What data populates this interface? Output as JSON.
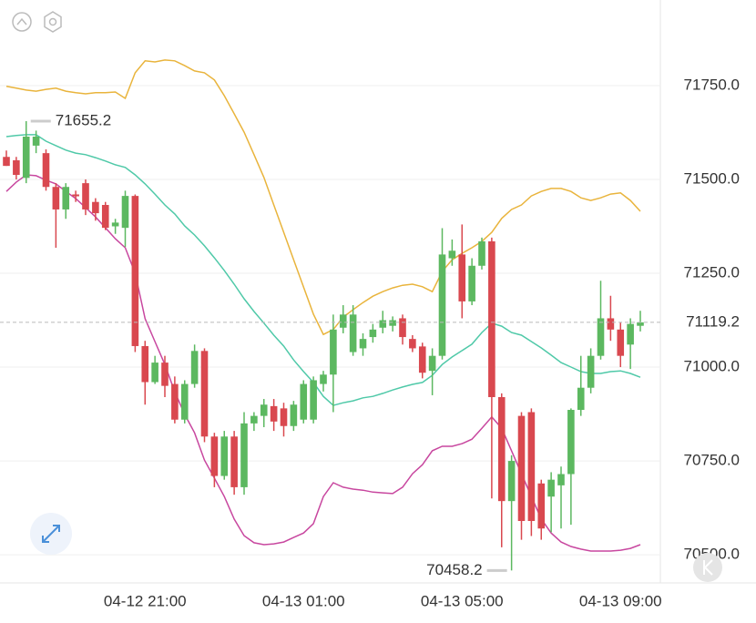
{
  "chart_data": {
    "type": "candlestick",
    "categories": [
      null,
      null,
      null,
      null,
      null,
      null,
      null,
      null,
      null,
      null,
      null,
      null,
      null,
      null,
      "04-12 21:00",
      null,
      null,
      null,
      null,
      null,
      null,
      null,
      null,
      null,
      null,
      null,
      null,
      null,
      null,
      null,
      "04-13 01:00",
      null,
      null,
      null,
      null,
      null,
      null,
      null,
      null,
      null,
      null,
      null,
      null,
      null,
      null,
      null,
      "04-13 05:00",
      null,
      null,
      null,
      null,
      null,
      null,
      null,
      null,
      null,
      null,
      null,
      null,
      null,
      null,
      null,
      "04-13 09:00",
      null,
      null
    ],
    "open": [
      71560,
      71551,
      71504,
      71590,
      71570,
      71480,
      71420,
      71460,
      71490,
      71440,
      71432,
      71375,
      71371,
      71456,
      71056,
      70960,
      71012,
      70955,
      70860,
      70955,
      71043,
      70815,
      70710,
      70815,
      70680,
      70850,
      70870,
      70896,
      70890,
      70843,
      70860,
      70860,
      70955,
      70980,
      71105,
      71040,
      71050,
      71080,
      71105,
      71110,
      71130,
      71075,
      71055,
      70990,
      71030,
      71290,
      71300,
      71175,
      71270,
      71335,
      70920,
      70643,
      70870,
      70880,
      70690,
      70655,
      70685,
      70715,
      70886,
      70945,
      71030,
      71130,
      71100,
      71060,
      71110
    ],
    "high": [
      71577,
      71560,
      71655.2,
      71630,
      71580,
      71490,
      71490,
      71470,
      71500,
      71450,
      71440,
      71395,
      71470,
      71460,
      71070,
      71030,
      71030,
      70975,
      70965,
      71060,
      71050,
      70825,
      70830,
      70830,
      70880,
      70880,
      70915,
      70915,
      70905,
      70910,
      70965,
      70975,
      70990,
      71140,
      71165,
      71165,
      71090,
      71115,
      71150,
      71135,
      71140,
      71085,
      71065,
      71050,
      71370,
      71340,
      71380,
      71290,
      71345,
      71345,
      70930,
      70765,
      70880,
      70890,
      70700,
      70720,
      70735,
      70890,
      71030,
      71050,
      71230,
      71190,
      71120,
      71130,
      71150
    ],
    "low": [
      71536,
      71500,
      71490,
      71570,
      71470,
      71318,
      71395,
      71440,
      71405,
      71390,
      71365,
      71355,
      71320,
      71040,
      70900,
      70955,
      70920,
      70850,
      70850,
      70945,
      70800,
      70680,
      70700,
      70660,
      70660,
      70830,
      70840,
      70830,
      70815,
      70830,
      70850,
      70850,
      70935,
      70880,
      71090,
      71030,
      71030,
      71065,
      71090,
      71095,
      71060,
      71040,
      70970,
      70925,
      71020,
      71270,
      71130,
      71165,
      71260,
      70650,
      70520,
      70458.2,
      70540,
      70550,
      70540,
      70560,
      70570,
      70580,
      70870,
      70930,
      71020,
      71070,
      71000,
      70995,
      71095
    ],
    "close": [
      71536,
      71512,
      71614,
      71614,
      71480,
      71420,
      71480,
      71455,
      71420,
      71410,
      71371,
      71385,
      71456,
      71056,
      70960,
      71012,
      70950,
      70860,
      70955,
      71043,
      70815,
      70710,
      70815,
      70680,
      70850,
      70870,
      70900,
      70855,
      70843,
      70900,
      70955,
      70965,
      70980,
      71100,
      71140,
      71140,
      71075,
      71100,
      71125,
      71125,
      71080,
      71050,
      70985,
      71030,
      71300,
      71310,
      71175,
      71270,
      71335,
      70920,
      70643,
      70750,
      70590,
      70590,
      70570,
      70700,
      70715,
      70886,
      70945,
      71030,
      71130,
      71100,
      71030,
      71115,
      71119.2
    ],
    "up_color": "#5cb860",
    "down_color": "#d9484f",
    "series": [
      {
        "color": "#e9b43c",
        "values": [
          71748,
          71743,
          71738,
          71735,
          71740,
          71743,
          71735,
          71731,
          71728,
          71731,
          71731,
          71733,
          71716,
          71784,
          71816,
          71813,
          71818,
          71816,
          71803,
          71789,
          71784,
          71765,
          71723,
          71675,
          71626,
          71566,
          71505,
          71432,
          71359,
          71286,
          71213,
          71141,
          71087,
          71100,
          71133,
          71153,
          71172,
          71189,
          71201,
          71211,
          71218,
          71221,
          71214,
          71201,
          71255,
          71286,
          71303,
          71318,
          71335,
          71359,
          71396,
          71420,
          71432,
          71456,
          71468,
          71476,
          71476,
          71468,
          71451,
          71444,
          71451,
          71461,
          71464,
          71444,
          71415
        ]
      },
      {
        "color": "#4fc9a8",
        "values": [
          71614,
          71617,
          71619,
          71619,
          71602,
          71590,
          71578,
          71570,
          71566,
          71558,
          71549,
          71539,
          71532,
          71512,
          71488,
          71461,
          71432,
          71408,
          71376,
          71352,
          71323,
          71291,
          71257,
          71221,
          71182,
          71148,
          71117,
          71085,
          71056,
          71019,
          70988,
          70959,
          70922,
          70898,
          70905,
          70910,
          70918,
          70922,
          70930,
          70939,
          70947,
          70954,
          70959,
          70978,
          71007,
          71027,
          71044,
          71061,
          71092,
          71117,
          71109,
          71092,
          71085,
          71068,
          71051,
          71032,
          71012,
          71000,
          70988,
          70983,
          70983,
          70988,
          70990,
          70983,
          70973
        ]
      },
      {
        "color": "#c8479f",
        "values": [
          71468,
          71493,
          71512,
          71510,
          71498,
          71488,
          71468,
          71449,
          71425,
          71400,
          71371,
          71342,
          71318,
          71250,
          71129,
          71068,
          71007,
          70934,
          70874,
          70825,
          70752,
          70704,
          70655,
          70595,
          70551,
          70532,
          70527,
          70529,
          70534,
          70546,
          70558,
          70583,
          70655,
          70692,
          70680,
          70675,
          70672,
          70667,
          70665,
          70663,
          70680,
          70716,
          70740,
          70777,
          70789,
          70789,
          70796,
          70808,
          70837,
          70867,
          70837,
          70777,
          70716,
          70655,
          70595,
          70558,
          70534,
          70522,
          70515,
          70510,
          70510,
          70510,
          70512,
          70517,
          70527
        ]
      }
    ],
    "ylim": [
      70425,
      71978
    ],
    "yticks": [
      {
        "value": 70500,
        "label": "70500.0"
      },
      {
        "value": 70750,
        "label": "70750.0"
      },
      {
        "value": 71000,
        "label": "71000.0"
      },
      {
        "value": 71250,
        "label": "71250.0"
      },
      {
        "value": 71500,
        "label": "71500.0"
      },
      {
        "value": 71750,
        "label": "71750.0"
      }
    ],
    "grid": true,
    "annotations": {
      "max": 71655.2,
      "min": 70458.2,
      "last": 71119.2
    }
  }
}
